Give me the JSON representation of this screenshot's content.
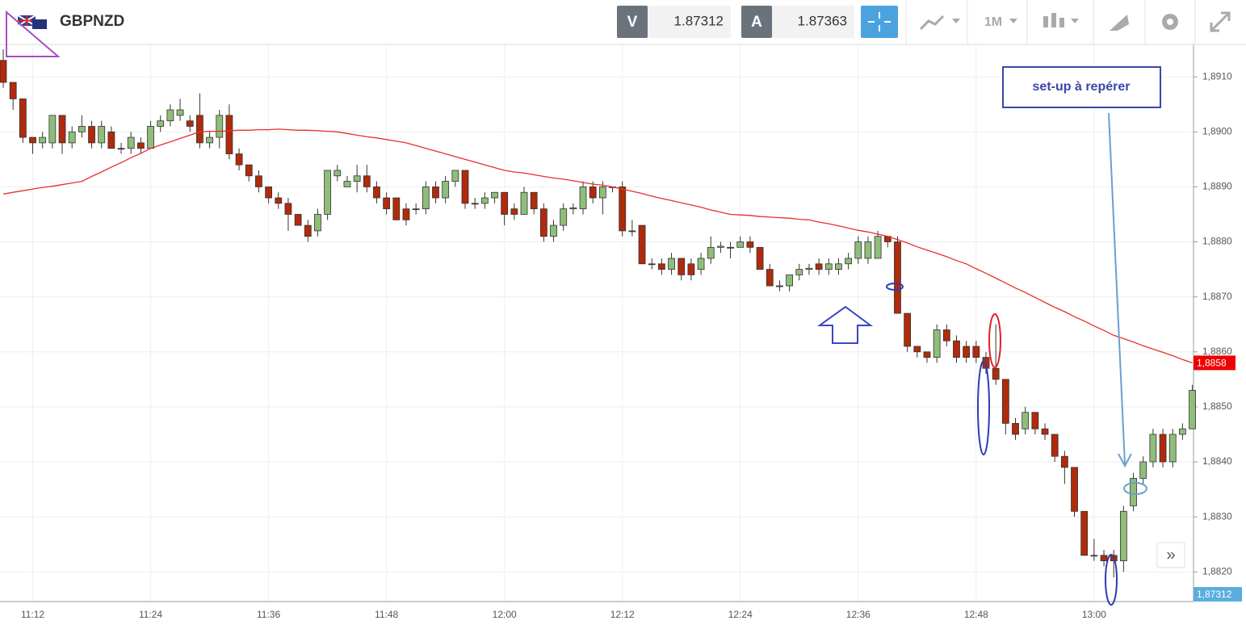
{
  "header": {
    "symbol": "GBPNZD",
    "bid_label": "V",
    "bid": "1.87312",
    "ask_label": "A",
    "ask": "1.87363",
    "timeframe": "1M"
  },
  "annotations": {
    "setup_label": "set-up à repérer"
  },
  "chart_data": {
    "type": "candlestick",
    "categories": [
      null,
      null,
      null,
      "11:12",
      null,
      null,
      null,
      null,
      null,
      null,
      null,
      null,
      null,
      null,
      null,
      "11:24",
      null,
      null,
      null,
      null,
      null,
      null,
      null,
      null,
      null,
      null,
      null,
      "11:36",
      null,
      null,
      null,
      null,
      null,
      null,
      null,
      null,
      null,
      null,
      null,
      "11:48",
      null,
      null,
      null,
      null,
      null,
      null,
      null,
      null,
      null,
      null,
      null,
      "12:00",
      null,
      null,
      null,
      null,
      null,
      null,
      null,
      null,
      null,
      null,
      null,
      "12:12",
      null,
      null,
      null,
      null,
      null,
      null,
      null,
      null,
      null,
      null,
      null,
      "12:24",
      null,
      null,
      null,
      null,
      null,
      null,
      null,
      null,
      null,
      null,
      null,
      "12:36",
      null,
      null,
      null,
      null,
      null,
      null,
      null,
      null,
      null,
      null,
      null,
      "12:48",
      null,
      null,
      null,
      null,
      null,
      null,
      null,
      null,
      null,
      null,
      null,
      "13:00",
      null,
      null,
      null,
      null,
      null,
      null,
      null,
      null,
      null,
      null
    ],
    "open": [
      1.8913,
      1.8909,
      1.8906,
      1.8899,
      1.8898,
      1.8898,
      1.8903,
      1.8898,
      1.89,
      1.8901,
      1.8898,
      1.89,
      1.8897,
      1.8897,
      1.8898,
      1.8897,
      1.8901,
      1.8902,
      1.8903,
      1.8902,
      1.8903,
      1.8898,
      1.8899,
      1.8903,
      1.8896,
      1.8894,
      1.8892,
      1.889,
      1.8888,
      1.8887,
      1.8885,
      1.8883,
      1.8882,
      1.8885,
      1.8892,
      1.889,
      1.8891,
      1.8892,
      1.889,
      1.8888,
      1.8888,
      1.8886,
      1.8886,
      1.8886,
      1.889,
      1.8888,
      1.8891,
      1.8893,
      1.8887,
      1.8887,
      1.8888,
      1.8889,
      1.8886,
      1.8885,
      1.8889,
      1.8886,
      1.8881,
      1.8883,
      1.8886,
      1.8886,
      1.889,
      1.8888,
      1.889,
      1.889,
      1.8882,
      1.8883,
      1.8876,
      1.8876,
      1.8875,
      1.8877,
      1.8876,
      1.8875,
      1.8877,
      1.8879,
      1.8879,
      1.8879,
      1.888,
      1.8879,
      1.8875,
      1.8872,
      1.8872,
      1.8874,
      1.8875,
      1.8876,
      1.8875,
      1.8875,
      1.8876,
      1.8877,
      1.8877,
      1.8877,
      1.8881,
      1.888,
      1.8867,
      1.8861,
      1.886,
      1.8859,
      1.8864,
      1.8862,
      1.8861,
      1.8861,
      1.8859,
      1.8857,
      1.8855,
      1.8847,
      1.8846,
      1.8849,
      1.8846,
      1.8845,
      1.8841,
      1.8839,
      1.8831,
      1.8823,
      1.8823,
      1.8823,
      1.8822,
      1.8832,
      1.8837,
      1.884,
      1.8845,
      1.884,
      1.8845,
      1.8846
    ],
    "high": [
      1.8915,
      1.8909,
      1.8906,
      1.8899,
      1.89,
      1.8903,
      1.8903,
      1.8901,
      1.8903,
      1.8902,
      1.8902,
      1.8901,
      1.8898,
      1.89,
      1.8899,
      1.8902,
      1.8903,
      1.8905,
      1.8906,
      1.8903,
      1.8907,
      1.89,
      1.8904,
      1.8905,
      1.8897,
      1.8894,
      1.8893,
      1.889,
      1.8889,
      1.8888,
      1.8885,
      1.8884,
      1.8886,
      1.8893,
      1.8894,
      1.8892,
      1.8894,
      1.8894,
      1.8891,
      1.8889,
      1.8888,
      1.8887,
      1.8887,
      1.8891,
      1.8891,
      1.8892,
      1.8893,
      1.8893,
      1.8888,
      1.8889,
      1.8889,
      1.8889,
      1.8887,
      1.889,
      1.8889,
      1.8887,
      1.8884,
      1.8887,
      1.8887,
      1.8891,
      1.8891,
      1.8891,
      1.889,
      1.8891,
      1.8884,
      1.8883,
      1.8877,
      1.8877,
      1.8878,
      1.8877,
      1.8877,
      1.8878,
      1.8881,
      1.888,
      1.888,
      1.8881,
      1.8881,
      1.8879,
      1.8876,
      1.8873,
      1.8874,
      1.8876,
      1.8876,
      1.8877,
      1.8877,
      1.8877,
      1.8878,
      1.8881,
      1.8881,
      1.8882,
      1.8881,
      1.8881,
      1.8867,
      1.8861,
      1.886,
      1.8865,
      1.8865,
      1.8863,
      1.8862,
      1.8862,
      1.886,
      1.8865,
      1.8855,
      1.8848,
      1.885,
      1.8849,
      1.8847,
      1.8845,
      1.8842,
      1.8839,
      1.8831,
      1.8826,
      1.8824,
      1.8824,
      1.8832,
      1.8838,
      1.8841,
      1.8846,
      1.8846,
      1.8846,
      1.8847,
      1.8854
    ],
    "low": [
      1.8908,
      1.8904,
      1.8898,
      1.8896,
      1.8897,
      1.8897,
      1.8896,
      1.8897,
      1.8899,
      1.8897,
      1.8897,
      1.8897,
      1.8896,
      1.8896,
      1.8896,
      1.8897,
      1.89,
      1.8901,
      1.8902,
      1.89,
      1.8897,
      1.8897,
      1.8897,
      1.8895,
      1.8893,
      1.8891,
      1.8889,
      1.8887,
      1.8886,
      1.8882,
      1.8883,
      1.888,
      1.8881,
      1.8884,
      1.8891,
      1.889,
      1.8889,
      1.8889,
      1.8887,
      1.8885,
      1.8884,
      1.8883,
      1.8885,
      1.8885,
      1.8887,
      1.8887,
      1.889,
      1.8886,
      1.8886,
      1.8886,
      1.8887,
      1.8883,
      1.8884,
      1.8885,
      1.8885,
      1.888,
      1.888,
      1.8882,
      1.8885,
      1.8885,
      1.8887,
      1.8885,
      1.8889,
      1.8881,
      1.8881,
      1.8876,
      1.8875,
      1.8874,
      1.8874,
      1.8873,
      1.8873,
      1.8874,
      1.8876,
      1.8878,
      1.8877,
      1.8879,
      1.8878,
      1.8875,
      1.8872,
      1.8871,
      1.8871,
      1.8873,
      1.8874,
      1.8874,
      1.8874,
      1.8874,
      1.8875,
      1.8876,
      1.8876,
      1.8877,
      1.8879,
      1.8867,
      1.886,
      1.8859,
      1.8858,
      1.8858,
      1.8861,
      1.8858,
      1.8858,
      1.8858,
      1.8856,
      1.8854,
      1.8845,
      1.8844,
      1.8845,
      1.8845,
      1.8844,
      1.884,
      1.8836,
      1.883,
      1.8823,
      1.8822,
      1.8821,
      1.8819,
      1.882,
      1.8831,
      1.8836,
      1.8839,
      1.8839,
      1.8839,
      1.8844,
      1.8846
    ],
    "close": [
      1.8909,
      1.8906,
      1.8899,
      1.8898,
      1.8899,
      1.8903,
      1.8898,
      1.89,
      1.8901,
      1.8898,
      1.8901,
      1.8897,
      1.8897,
      1.8899,
      1.8897,
      1.8901,
      1.8902,
      1.8904,
      1.8904,
      1.8901,
      1.8898,
      1.8899,
      1.8903,
      1.8896,
      1.8894,
      1.8892,
      1.889,
      1.8888,
      1.8887,
      1.8885,
      1.8883,
      1.8881,
      1.8885,
      1.8893,
      1.8893,
      1.8891,
      1.8892,
      1.889,
      1.8888,
      1.8886,
      1.8884,
      1.8884,
      1.8886,
      1.889,
      1.8888,
      1.8891,
      1.8893,
      1.8887,
      1.8887,
      1.8888,
      1.8889,
      1.8885,
      1.8885,
      1.8889,
      1.8886,
      1.8881,
      1.8883,
      1.8886,
      1.88862,
      1.889,
      1.8888,
      1.889,
      1.889,
      1.8882,
      1.8882,
      1.8876,
      1.8876,
      1.8875,
      1.8877,
      1.8874,
      1.8874,
      1.8877,
      1.8879,
      1.88792,
      1.8879,
      1.888,
      1.8879,
      1.8875,
      1.8872,
      1.8872,
      1.8874,
      1.8875,
      1.88752,
      1.8875,
      1.8876,
      1.8876,
      1.8877,
      1.888,
      1.888,
      1.8881,
      1.888,
      1.8867,
      1.8861,
      1.886,
      1.8859,
      1.8864,
      1.8862,
      1.8859,
      1.8859,
      1.8859,
      1.8857,
      1.8855,
      1.8847,
      1.8845,
      1.8849,
      1.8846,
      1.8845,
      1.8841,
      1.8839,
      1.8831,
      1.8823,
      1.8823,
      1.8822,
      1.8822,
      1.8831,
      1.8837,
      1.884,
      1.8845,
      1.884,
      1.8845,
      1.8846,
      1.8853
    ],
    "up_color": "#8fbd7a",
    "down_color": "#b02a0c",
    "moving_average": {
      "color": "#e8302a",
      "values": [
        1.88887,
        1.8889,
        1.88893,
        1.88896,
        1.88899,
        1.88901,
        1.88904,
        1.88907,
        1.8891,
        1.88919,
        1.88927,
        1.88936,
        1.88944,
        1.88953,
        1.88961,
        1.8897,
        1.88976,
        1.88982,
        1.88988,
        1.88994,
        1.89,
        1.89001,
        1.89001,
        1.89002,
        1.89003,
        1.89003,
        1.89004,
        1.89004,
        1.89005,
        1.89004,
        1.89003,
        1.89003,
        1.89002,
        1.89001,
        1.89,
        1.88997,
        1.88994,
        1.88991,
        1.88989,
        1.88986,
        1.88983,
        1.8898,
        1.88975,
        1.8897,
        1.88965,
        1.8896,
        1.88955,
        1.8895,
        1.88945,
        1.8894,
        1.88935,
        1.8893,
        1.88927,
        1.88925,
        1.88922,
        1.88919,
        1.88916,
        1.88914,
        1.88911,
        1.88908,
        1.88905,
        1.88903,
        1.889,
        1.88896,
        1.88892,
        1.88888,
        1.88883,
        1.88879,
        1.88875,
        1.88871,
        1.88867,
        1.88863,
        1.88858,
        1.88854,
        1.8885,
        1.88849,
        1.88848,
        1.88846,
        1.88845,
        1.88844,
        1.88843,
        1.88841,
        1.8884,
        1.88836,
        1.88833,
        1.88829,
        1.88825,
        1.88821,
        1.88818,
        1.88814,
        1.8881,
        1.88804,
        1.88798,
        1.88791,
        1.88785,
        1.88779,
        1.88773,
        1.88766,
        1.8876,
        1.88751,
        1.88743,
        1.88734,
        1.88725,
        1.88716,
        1.88708,
        1.88699,
        1.8869,
        1.88681,
        1.88673,
        1.88664,
        1.88656,
        1.88647,
        1.88639,
        1.8863,
        1.88624,
        1.88618,
        1.88611,
        1.88605,
        1.88599,
        1.88593,
        1.88586,
        1.8858
      ]
    },
    "price_labels": [
      {
        "value": 1.8858,
        "label": "1,8858",
        "color": "#ee0000"
      },
      {
        "value": 1.87312,
        "label": "1,87312",
        "color": "#5aaede"
      }
    ],
    "ylim": [
      1.88146,
      1.89159
    ],
    "yticks": [
      {
        "value": 1.882,
        "label": "1,8820"
      },
      {
        "value": 1.883,
        "label": "1,8830"
      },
      {
        "value": 1.884,
        "label": "1,8840"
      },
      {
        "value": 1.885,
        "label": "1,8850"
      },
      {
        "value": 1.886,
        "label": "1,8860"
      },
      {
        "value": 1.887,
        "label": "1,8870"
      },
      {
        "value": 1.888,
        "label": "1,8880"
      },
      {
        "value": 1.889,
        "label": "1,8890"
      },
      {
        "value": 1.89,
        "label": "1,8900"
      },
      {
        "value": 1.891,
        "label": "1,8910"
      }
    ],
    "grid": true
  }
}
